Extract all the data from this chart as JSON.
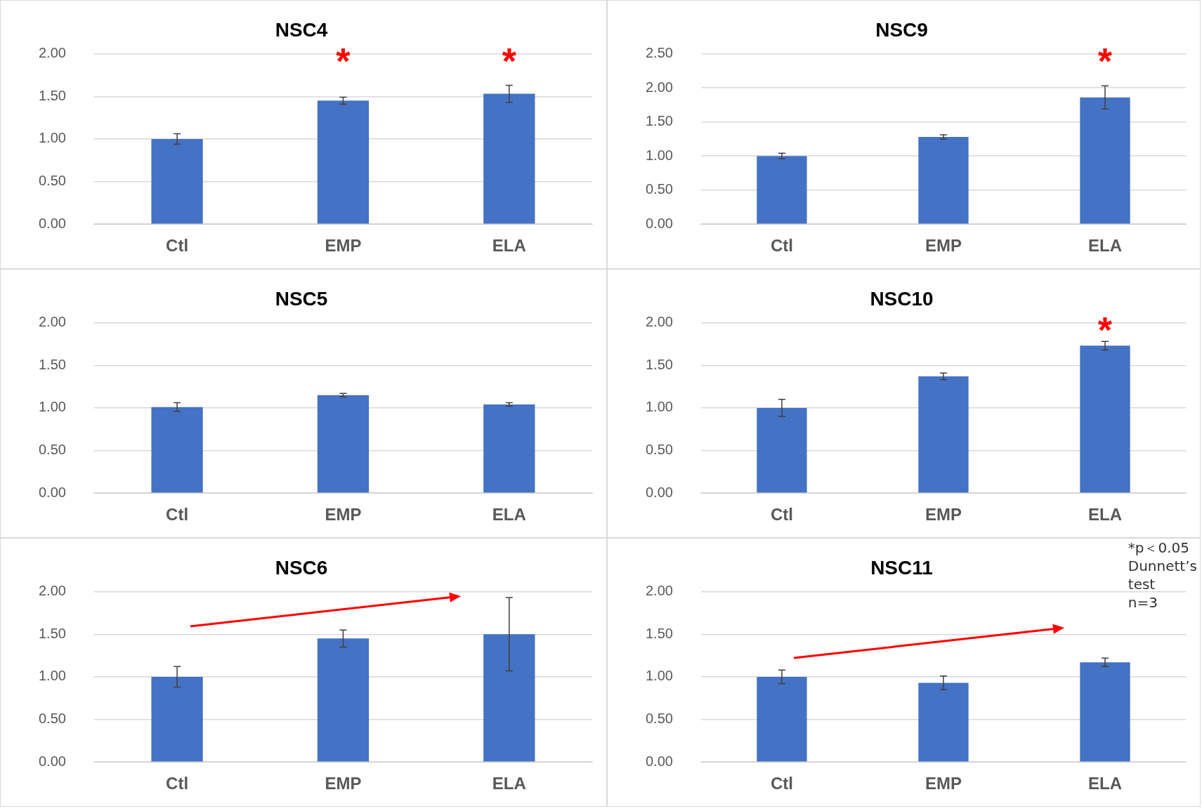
{
  "chart_data": [
    {
      "type": "bar",
      "title": "NSC4",
      "categories": [
        "Ctl",
        "EMP",
        "ELA"
      ],
      "values": [
        1.0,
        1.45,
        1.53
      ],
      "errors": [
        0.06,
        0.04,
        0.1
      ],
      "color": "#4472c4",
      "ylim": [
        0,
        2
      ],
      "yticks": [
        {
          "value": 0,
          "label": "0.00"
        },
        {
          "value": 0.5,
          "label": "0.50"
        },
        {
          "value": 1,
          "label": "1.00"
        },
        {
          "value": 1.5,
          "label": "1.50"
        },
        {
          "value": 2,
          "label": "2.00"
        }
      ],
      "grid": "y",
      "value_labels": [
        null,
        "*",
        "*"
      ]
    },
    {
      "type": "bar",
      "title": "NSC9",
      "categories": [
        "Ctl",
        "EMP",
        "ELA"
      ],
      "values": [
        1.0,
        1.28,
        1.86
      ],
      "errors": [
        0.04,
        0.03,
        0.17
      ],
      "color": "#4472c4",
      "ylim": [
        0,
        2.5
      ],
      "yticks": [
        {
          "value": 0,
          "label": "0.00"
        },
        {
          "value": 0.5,
          "label": "0.50"
        },
        {
          "value": 1,
          "label": "1.00"
        },
        {
          "value": 1.5,
          "label": "1.50"
        },
        {
          "value": 2,
          "label": "2.00"
        },
        {
          "value": 2.5,
          "label": "2.50"
        }
      ],
      "grid": "y",
      "value_labels": [
        null,
        null,
        "*"
      ]
    },
    {
      "type": "bar",
      "title": "NSC5",
      "categories": [
        "Ctl",
        "EMP",
        "ELA"
      ],
      "values": [
        1.01,
        1.15,
        1.04
      ],
      "errors": [
        0.05,
        0.02,
        0.02
      ],
      "color": "#4472c4",
      "ylim": [
        0,
        2
      ],
      "yticks": [
        {
          "value": 0,
          "label": "0.00"
        },
        {
          "value": 0.5,
          "label": "0.50"
        },
        {
          "value": 1,
          "label": "1.00"
        },
        {
          "value": 1.5,
          "label": "1.50"
        },
        {
          "value": 2,
          "label": "2.00"
        }
      ],
      "grid": "y"
    },
    {
      "type": "bar",
      "title": "NSC10",
      "categories": [
        "Ctl",
        "EMP",
        "ELA"
      ],
      "values": [
        1.0,
        1.37,
        1.73
      ],
      "errors": [
        0.1,
        0.04,
        0.05
      ],
      "color": "#4472c4",
      "ylim": [
        0,
        2
      ],
      "yticks": [
        {
          "value": 0,
          "label": "0.00"
        },
        {
          "value": 0.5,
          "label": "0.50"
        },
        {
          "value": 1,
          "label": "1.00"
        },
        {
          "value": 1.5,
          "label": "1.50"
        },
        {
          "value": 2,
          "label": "2.00"
        }
      ],
      "grid": "y",
      "value_labels": [
        null,
        null,
        "*"
      ]
    },
    {
      "type": "bar",
      "title": "NSC6",
      "categories": [
        "Ctl",
        "EMP",
        "ELA"
      ],
      "values": [
        1.0,
        1.45,
        1.5
      ],
      "errors": [
        0.12,
        0.1,
        0.43
      ],
      "color": "#4472c4",
      "ylim": [
        0,
        2
      ],
      "yticks": [
        {
          "value": 0,
          "label": "0.00"
        },
        {
          "value": 0.5,
          "label": "0.50"
        },
        {
          "value": 1,
          "label": "1.00"
        },
        {
          "value": 1.5,
          "label": "1.50"
        },
        {
          "value": 2,
          "label": "2.00"
        }
      ],
      "grid": "y"
    },
    {
      "type": "bar",
      "title": "NSC11",
      "categories": [
        "Ctl",
        "EMP",
        "ELA"
      ],
      "values": [
        1.0,
        0.93,
        1.17
      ],
      "errors": [
        0.08,
        0.08,
        0.05
      ],
      "color": "#4472c4",
      "ylim": [
        0,
        2
      ],
      "yticks": [
        {
          "value": 0,
          "label": "0.00"
        },
        {
          "value": 0.5,
          "label": "0.50"
        },
        {
          "value": 1,
          "label": "1.00"
        },
        {
          "value": 1.5,
          "label": "1.50"
        },
        {
          "value": 2,
          "label": "2.00"
        }
      ],
      "grid": "y",
      "annotations": [
        "*p＜0.05\nDunnett’s\ntest\nn=3"
      ]
    }
  ]
}
